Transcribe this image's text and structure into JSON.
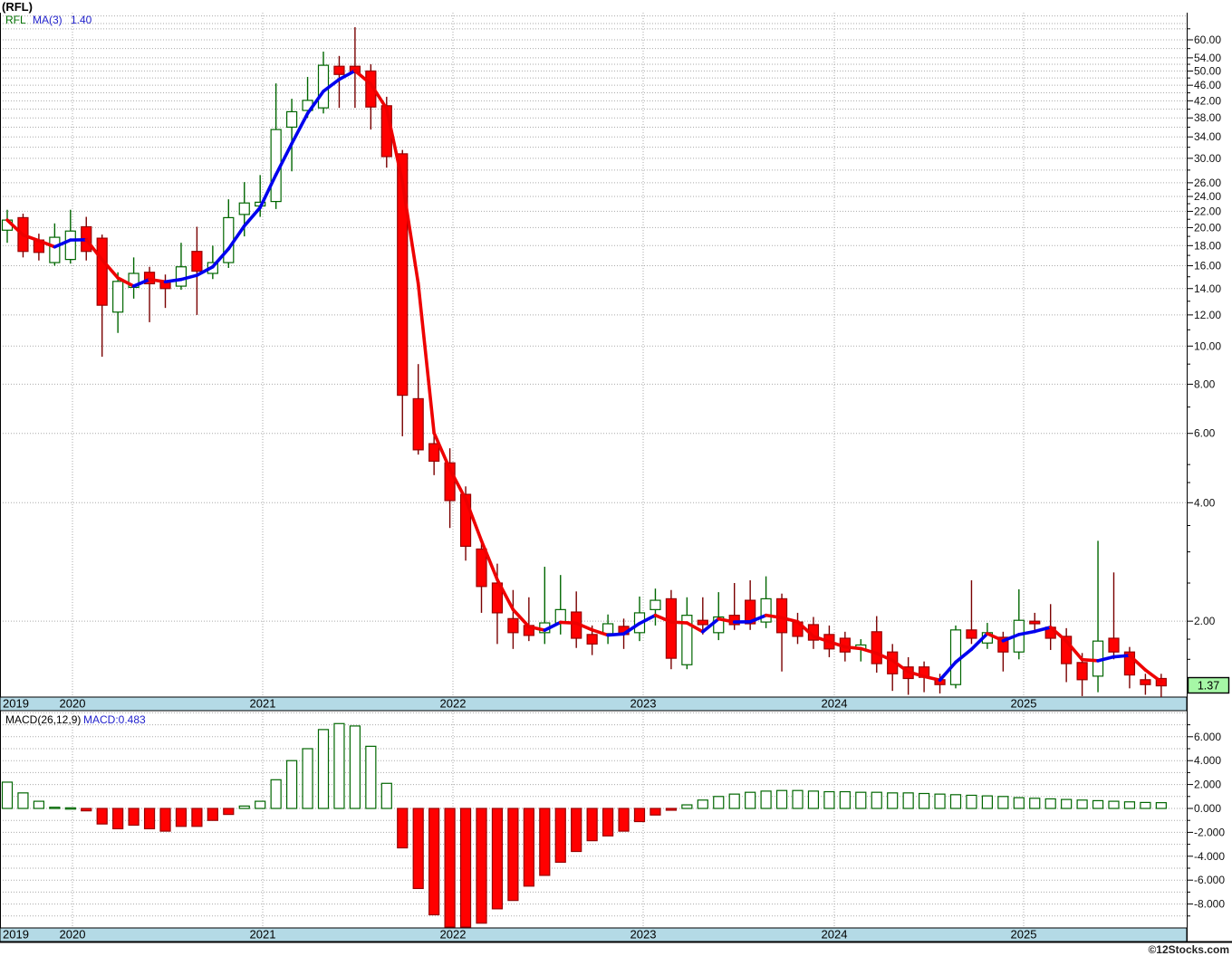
{
  "window": {
    "title": "(RFL)",
    "watermark": "©12Stocks.com"
  },
  "price_panel": {
    "legend": {
      "symbol": "RFL",
      "ma_label": "MA(3)",
      "ma_value": "1.40"
    },
    "badge": "1.37",
    "axis": {
      "labels": [
        "60.00",
        "54.00",
        "50.00",
        "46.00",
        "42.00",
        "38.00",
        "34.00",
        "30.00",
        "26.00",
        "24.00",
        "22.00",
        "20.00",
        "18.00",
        "16.00",
        "14.00",
        "12.00",
        "10.00",
        "8.00",
        "6.00",
        "4.00",
        "2.00"
      ],
      "minor_ticks": [
        64,
        57,
        52,
        48,
        44,
        40,
        36,
        32,
        28,
        25,
        23,
        21,
        19,
        17,
        15,
        13,
        11,
        9,
        7,
        5,
        4.5,
        3.5,
        3,
        2.5,
        1.8,
        1.6,
        1.4
      ],
      "extra_gridlines": [
        69,
        66,
        64,
        57,
        52,
        48,
        44,
        40,
        36,
        32,
        28
      ],
      "scale": "log"
    }
  },
  "macd_panel": {
    "legend": {
      "label": "MACD(26,12,9)",
      "value": "MACD:0.483"
    },
    "axis": {
      "labels": [
        "6.000",
        "4.000",
        "2.000",
        "0.000",
        "-2.000",
        "-4.000",
        "-6.000",
        "-8.000"
      ],
      "minor_ticks": [
        7,
        5,
        3,
        1,
        -1,
        -3,
        -5,
        -7,
        -9
      ],
      "range": [
        -10.3,
        8
      ]
    }
  },
  "x_axis": {
    "years": [
      "2019",
      "2020",
      "2021",
      "2022",
      "2023",
      "2024",
      "2025"
    ]
  },
  "chart_data": {
    "type": "candlestick+macd",
    "title": "(RFL)",
    "interval": "monthly",
    "ma_period": 3,
    "price_axis_range": [
      1.28,
      70
    ],
    "candles_ohlc": [
      [
        19.7,
        22.2,
        18.3,
        20.9
      ],
      [
        21.2,
        21.7,
        16.8,
        17.4
      ],
      [
        18.6,
        19.3,
        16.5,
        17.3
      ],
      [
        16.3,
        20.5,
        16.0,
        18.9
      ],
      [
        16.6,
        22.2,
        16.2,
        19.6
      ],
      [
        20.1,
        21.3,
        16.5,
        17.4
      ],
      [
        18.8,
        19.2,
        9.4,
        12.7
      ],
      [
        12.2,
        15.4,
        10.8,
        14.6
      ],
      [
        14.1,
        16.8,
        13.2,
        15.3
      ],
      [
        15.4,
        15.9,
        11.5,
        14.4
      ],
      [
        14.6,
        15.2,
        12.5,
        14.0
      ],
      [
        14.2,
        18.3,
        13.9,
        15.9
      ],
      [
        17.4,
        20.1,
        12.0,
        15.5
      ],
      [
        15.3,
        18.0,
        14.8,
        16.3
      ],
      [
        16.3,
        23.6,
        15.8,
        21.2
      ],
      [
        21.6,
        26.1,
        19.0,
        23.1
      ],
      [
        22.7,
        27.2,
        21.3,
        23.2
      ],
      [
        23.3,
        46.5,
        22.3,
        35.5
      ],
      [
        36.0,
        42.5,
        27.8,
        39.4
      ],
      [
        39.7,
        48.3,
        38.0,
        42.1
      ],
      [
        40.3,
        56.0,
        39.0,
        51.7
      ],
      [
        51.4,
        54.6,
        40.3,
        49.0
      ],
      [
        51.4,
        64.6,
        40.3,
        49.5
      ],
      [
        50.0,
        52.0,
        35.5,
        40.5
      ],
      [
        40.8,
        43.0,
        28.4,
        30.3
      ],
      [
        30.8,
        31.5,
        5.9,
        7.5
      ],
      [
        7.35,
        9.0,
        5.3,
        5.45
      ],
      [
        5.65,
        6.3,
        4.7,
        5.1
      ],
      [
        5.05,
        5.5,
        3.45,
        4.05
      ],
      [
        4.2,
        4.4,
        2.85,
        3.1
      ],
      [
        3.05,
        3.2,
        2.1,
        2.45
      ],
      [
        2.5,
        2.8,
        1.75,
        2.1
      ],
      [
        2.03,
        2.4,
        1.7,
        1.87
      ],
      [
        1.95,
        2.3,
        1.78,
        1.84
      ],
      [
        1.87,
        2.75,
        1.75,
        1.98
      ],
      [
        1.98,
        2.62,
        1.85,
        2.14
      ],
      [
        2.11,
        2.38,
        1.71,
        1.81
      ],
      [
        1.85,
        1.95,
        1.64,
        1.75
      ],
      [
        1.86,
        2.08,
        1.75,
        1.97
      ],
      [
        1.94,
        2.03,
        1.7,
        1.85
      ],
      [
        1.87,
        2.31,
        1.78,
        2.1
      ],
      [
        2.14,
        2.42,
        1.95,
        2.26
      ],
      [
        2.28,
        2.4,
        1.51,
        1.61
      ],
      [
        1.55,
        2.3,
        1.51,
        2.07
      ],
      [
        2.01,
        2.3,
        1.85,
        1.96
      ],
      [
        1.87,
        2.37,
        1.79,
        2.05
      ],
      [
        2.07,
        2.5,
        1.9,
        1.96
      ],
      [
        2.26,
        2.54,
        1.9,
        1.97
      ],
      [
        1.99,
        2.6,
        1.92,
        2.28
      ],
      [
        2.28,
        2.35,
        1.49,
        1.87
      ],
      [
        1.99,
        2.1,
        1.75,
        1.83
      ],
      [
        1.96,
        2.05,
        1.7,
        1.79
      ],
      [
        1.85,
        1.95,
        1.62,
        1.7
      ],
      [
        1.81,
        1.88,
        1.58,
        1.67
      ],
      [
        1.7,
        1.8,
        1.58,
        1.74
      ],
      [
        1.88,
        2.06,
        1.48,
        1.56
      ],
      [
        1.67,
        1.75,
        1.33,
        1.47
      ],
      [
        1.53,
        1.62,
        1.3,
        1.43
      ],
      [
        1.53,
        1.58,
        1.32,
        1.44
      ],
      [
        1.42,
        1.47,
        1.31,
        1.38
      ],
      [
        1.38,
        1.95,
        1.35,
        1.9
      ],
      [
        1.9,
        2.54,
        1.75,
        1.81
      ],
      [
        1.76,
        1.98,
        1.7,
        1.87
      ],
      [
        1.82,
        1.88,
        1.49,
        1.67
      ],
      [
        1.67,
        2.41,
        1.6,
        2.01
      ],
      [
        2.0,
        2.1,
        1.9,
        1.97
      ],
      [
        1.93,
        2.21,
        1.69,
        1.81
      ],
      [
        1.83,
        1.92,
        1.4,
        1.56
      ],
      [
        1.57,
        1.66,
        1.29,
        1.42
      ],
      [
        1.45,
        3.2,
        1.32,
        1.78
      ],
      [
        1.81,
        2.66,
        1.6,
        1.67
      ],
      [
        1.67,
        1.72,
        1.35,
        1.46
      ],
      [
        1.42,
        1.47,
        1.3,
        1.38
      ],
      [
        1.43,
        1.47,
        1.28,
        1.37
      ]
    ],
    "macd_histogram": [
      2.2,
      1.3,
      0.6,
      0.1,
      0.05,
      -0.2,
      -1.3,
      -1.7,
      -1.4,
      -1.7,
      -1.9,
      -1.5,
      -1.5,
      -1.0,
      -0.5,
      0.2,
      0.6,
      2.4,
      4.0,
      5.0,
      6.6,
      7.1,
      6.9,
      5.2,
      2.1,
      -3.3,
      -6.7,
      -8.9,
      -10.0,
      -10.2,
      -9.6,
      -8.4,
      -7.7,
      -6.5,
      -5.6,
      -4.5,
      -3.6,
      -2.7,
      -2.3,
      -1.9,
      -1.1,
      -0.55,
      -0.15,
      0.3,
      0.7,
      1.0,
      1.2,
      1.35,
      1.45,
      1.5,
      1.5,
      1.45,
      1.4,
      1.4,
      1.35,
      1.35,
      1.3,
      1.3,
      1.25,
      1.2,
      1.15,
      1.1,
      1.05,
      1.0,
      0.9,
      0.85,
      0.8,
      0.75,
      0.7,
      0.65,
      0.6,
      0.55,
      0.5,
      0.483
    ],
    "colors": {
      "up_candle_border": "#006600",
      "up_candle_fill": "#ffffff",
      "down_candle_fill": "#ff0000",
      "down_candle_border": "#990000",
      "down_wick": "#7a0000",
      "ma_rising": "#0000ee",
      "ma_falling": "#ee0000",
      "macd_pos_border": "#006600",
      "macd_neg_fill": "#ff0000",
      "grid": "#aaaaaa",
      "year_band": "#b4dae6",
      "badge_bg": "#a6f7a6"
    },
    "legend_position": "top-left",
    "grid": true
  }
}
